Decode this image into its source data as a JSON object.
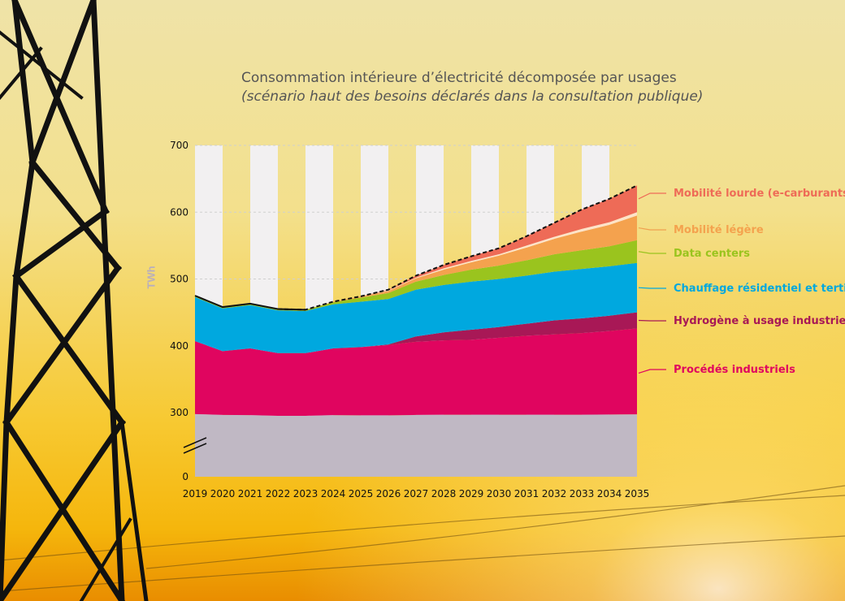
{
  "title": "Consommation intérieure d’électricité décomposée par usages",
  "subtitle": "(scénario haut des besoins déclarés dans la consultation publique)",
  "chart_data": {
    "type": "area",
    "stacked": true,
    "x": [
      2019,
      2020,
      2021,
      2022,
      2023,
      2024,
      2025,
      2026,
      2027,
      2028,
      2029,
      2030,
      2031,
      2032,
      2033,
      2034,
      2035
    ],
    "ylabel": "TWh",
    "y_ticks": [
      0,
      300,
      400,
      500,
      600,
      700
    ],
    "y_axis_break": [
      0,
      300
    ],
    "ylim": [
      0,
      700
    ],
    "grid": "horizontal dashed",
    "series": [
      {
        "key": "base",
        "name": "",
        "color": "#c0b8c4",
        "values": [
          293,
          289,
          288,
          285,
          285,
          288,
          287,
          287,
          289,
          290,
          290,
          290,
          290,
          290,
          290,
          291,
          292
        ]
      },
      {
        "key": "procedes",
        "name": "Procédés industriels",
        "color": "#e0055f",
        "values": [
          114,
          103,
          108,
          104,
          104,
          108,
          111,
          114,
          117,
          118,
          119,
          122,
          125,
          127,
          129,
          131,
          134
        ]
      },
      {
        "key": "hydrogene",
        "name": "Hydrogène à usage industriel",
        "color": "#a81856",
        "values": [
          0,
          0,
          0,
          0,
          0,
          0,
          0,
          1,
          8,
          12,
          15,
          16,
          18,
          21,
          22,
          23,
          24
        ]
      },
      {
        "key": "chauffage",
        "name": "Chauffage résidentiel et tertiaire",
        "color": "#00a8df",
        "values": [
          66,
          64,
          65,
          64,
          63,
          66,
          68,
          68,
          70,
          71,
          72,
          72,
          72,
          73,
          74,
          74,
          74
        ]
      },
      {
        "key": "data",
        "name": "Data centers",
        "color": "#9ac41e",
        "values": [
          2,
          2,
          2,
          2,
          2,
          3,
          6,
          9,
          12,
          15,
          18,
          20,
          23,
          26,
          28,
          30,
          34
        ]
      },
      {
        "key": "legere",
        "name": "Mobilité légère",
        "color": "#f4a24e",
        "values": [
          0,
          0,
          0,
          0,
          0,
          1,
          2,
          3,
          5,
          8,
          11,
          15,
          19,
          23,
          28,
          32,
          37
        ]
      },
      {
        "key": "autre",
        "name": "",
        "color": "#fde3c8",
        "values": [
          0,
          0,
          0,
          0,
          0,
          0,
          0,
          1,
          1,
          2,
          2,
          2,
          3,
          3,
          4,
          4,
          5
        ]
      },
      {
        "key": "lourde",
        "name": "Mobilité lourde (e-carburants)",
        "color": "#ee6b57",
        "values": [
          0,
          0,
          0,
          0,
          0,
          0,
          0,
          1,
          3,
          5,
          7,
          9,
          14,
          21,
          29,
          35,
          40
        ]
      }
    ],
    "legend_position": "right"
  },
  "colors": {
    "total_line": "#111111",
    "stripe": "#f2f0f1"
  }
}
